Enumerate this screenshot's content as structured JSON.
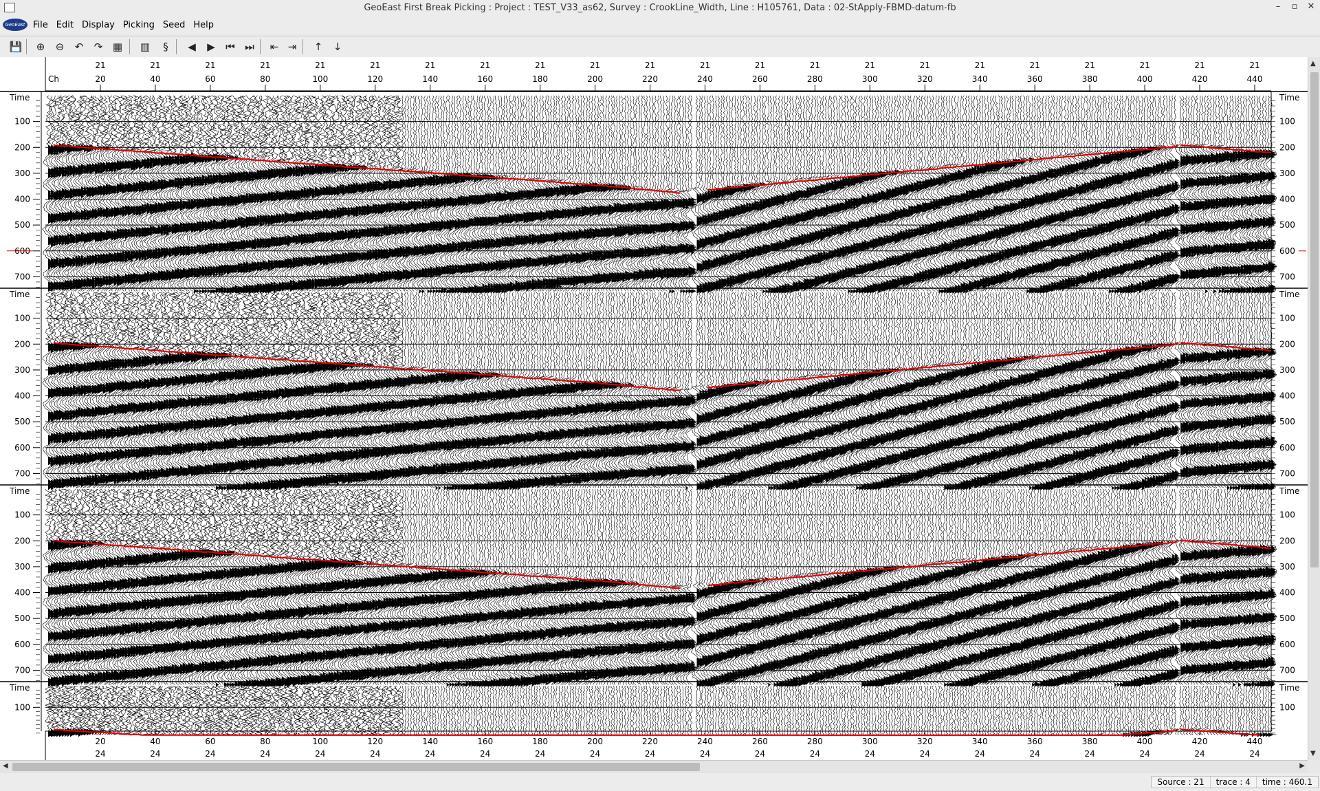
{
  "window": {
    "title": "GeoEast First Break Picking : Project : TEST_V33_as62,  Survey : CrookLine_Width,  Line : H105761,  Data : 02-StApply-FBMD-datum-fb"
  },
  "logo_text": "GeoEast",
  "menu": [
    "File",
    "Edit",
    "Display",
    "Picking",
    "Seed",
    "Help"
  ],
  "toolbar": [
    {
      "name": "save-icon",
      "glyph": "💾"
    },
    {
      "name": "zoom-in-icon",
      "glyph": "⊕"
    },
    {
      "name": "zoom-out-icon",
      "glyph": "⊖"
    },
    {
      "name": "undo-icon",
      "glyph": "↶"
    },
    {
      "name": "redo-icon",
      "glyph": "↷"
    },
    {
      "name": "grid-icon",
      "glyph": "▦"
    },
    {
      "name": "trace-display-icon",
      "glyph": "▥"
    },
    {
      "name": "pick-icon",
      "glyph": "§"
    },
    {
      "name": "prev-icon",
      "glyph": "◀"
    },
    {
      "name": "next-icon",
      "glyph": "▶"
    },
    {
      "name": "first-icon",
      "glyph": "⏮"
    },
    {
      "name": "last-icon",
      "glyph": "⏭"
    },
    {
      "name": "shift-left-icon",
      "glyph": "⇤"
    },
    {
      "name": "shift-right-icon",
      "glyph": "⇥"
    },
    {
      "name": "up-icon",
      "glyph": "↑"
    },
    {
      "name": "down-icon",
      "glyph": "↓"
    }
  ],
  "axis": {
    "channel_label": "Ch",
    "time_label": "Time",
    "top_group_label": "21",
    "bottom_group_label": "24",
    "channels": [
      20,
      40,
      60,
      80,
      100,
      120,
      140,
      160,
      180,
      200,
      220,
      240,
      260,
      280,
      300,
      320,
      340,
      360,
      380,
      400,
      420,
      440
    ],
    "time_ticks": [
      100,
      200,
      300,
      400,
      500,
      600,
      700
    ],
    "panel_time_max": 760,
    "bottom_panel_ticks": [
      100
    ],
    "channel_range": [
      0,
      446
    ],
    "marker_time": 600
  },
  "status": {
    "source": "Source : 21",
    "trace": "trace : 4",
    "time": "time : 460.1"
  }
}
